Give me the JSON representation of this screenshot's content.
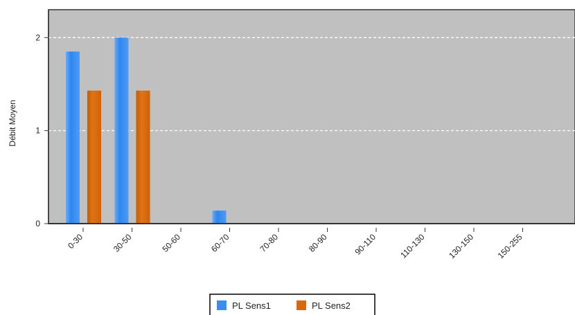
{
  "chart_data": {
    "type": "bar",
    "title": "",
    "xlabel": "",
    "ylabel": "Débit Moyen",
    "ylim": [
      0,
      2.3
    ],
    "yticks": [
      0,
      1,
      2
    ],
    "grid": true,
    "legend_position": "bottom",
    "categories": [
      "0-30",
      "30-50",
      "50-60",
      "60-70",
      "70-80",
      "80-90",
      "90-110",
      "110-130",
      "130-150",
      "150-255"
    ],
    "series": [
      {
        "name": "PL Sens1",
        "color": "#3a8ef0",
        "values": [
          1.85,
          2.0,
          0,
          0.14,
          0,
          0,
          0,
          0,
          0,
          0
        ]
      },
      {
        "name": "PL Sens2",
        "color": "#d9680a",
        "values": [
          1.43,
          1.43,
          0,
          0,
          0,
          0,
          0,
          0,
          0,
          0
        ]
      }
    ],
    "colors": {
      "plot_background": "#c0c0c0",
      "gridline": "#ffffff",
      "axis": "#333333"
    }
  }
}
